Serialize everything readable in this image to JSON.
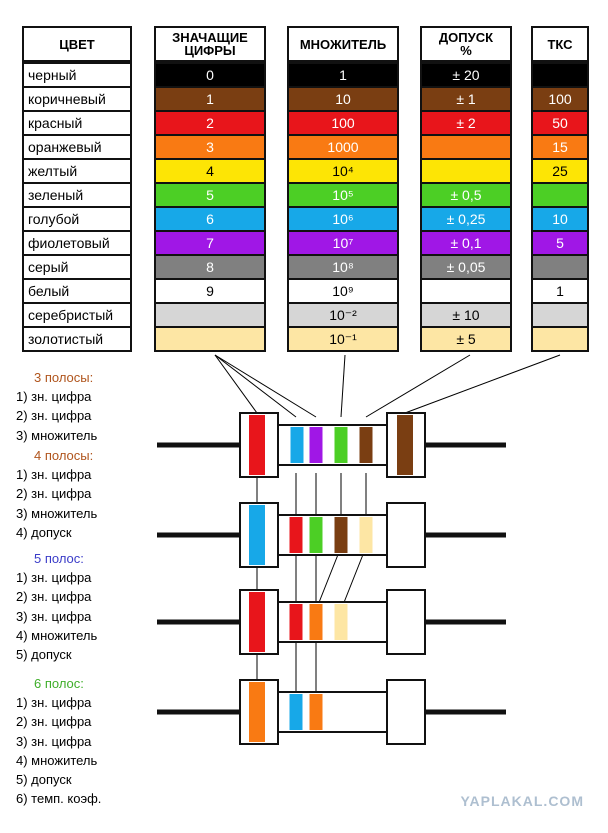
{
  "headers": {
    "color": "ЦВЕТ",
    "digits": "ЗНАЧАЩИЕ\nЦИФРЫ",
    "multiplier": "МНОЖИТЕЛЬ",
    "tolerance": "ДОПУСК\n%",
    "tkc": "ТКС"
  },
  "rows": [
    {
      "name": "черный",
      "hex": "#000000",
      "digit": "0",
      "mult": "1",
      "tol": "± 20",
      "tkc": ""
    },
    {
      "name": "коричневый",
      "hex": "#7a3e12",
      "digit": "1",
      "mult": "10",
      "tol": "± 1",
      "tkc": "100"
    },
    {
      "name": "красный",
      "hex": "#e8151b",
      "digit": "2",
      "mult": "100",
      "tol": "± 2",
      "tkc": "50"
    },
    {
      "name": "оранжевый",
      "hex": "#f97a13",
      "digit": "3",
      "mult": "1000",
      "tol": "",
      "tkc": "15"
    },
    {
      "name": "желтый",
      "hex": "#fde505",
      "digit": "4",
      "mult": "10⁴",
      "tol": "",
      "tkc": "25"
    },
    {
      "name": "зеленый",
      "hex": "#4ccf25",
      "digit": "5",
      "mult": "10⁵",
      "tol": "± 0,5",
      "tkc": ""
    },
    {
      "name": "голубой",
      "hex": "#17a8e8",
      "digit": "6",
      "mult": "10⁶",
      "tol": "± 0,25",
      "tkc": "10"
    },
    {
      "name": "фиолетовый",
      "hex": "#a017e6",
      "digit": "7",
      "mult": "10⁷",
      "tol": "± 0,1",
      "tkc": "5"
    },
    {
      "name": "серый",
      "hex": "#808080",
      "digit": "8",
      "mult": "10⁸",
      "tol": "± 0,05",
      "tkc": ""
    },
    {
      "name": "белый",
      "hex": "#ffffff",
      "digit": "9",
      "mult": "10⁹",
      "tol": "",
      "tkc": "1"
    },
    {
      "name": "серебристый",
      "hex": "#d6d6d6",
      "digit": "",
      "mult": "10⁻²",
      "tol": "± 10",
      "tkc": ""
    },
    {
      "name": "золотистый",
      "hex": "#fde6a4",
      "digit": "",
      "mult": "10⁻¹",
      "tol": "± 5",
      "tkc": ""
    }
  ],
  "legend": [
    {
      "title": "3 полосы:",
      "color": "#b0551d",
      "items": [
        "1) зн. цифра",
        "2) зн. цифра",
        "3) множитель"
      ]
    },
    {
      "title": "4 полосы:",
      "color": "#b0551d",
      "items": [
        "1) зн. цифра",
        "2) зн. цифра",
        "3) множитель",
        "4) допуск"
      ]
    },
    {
      "title": "5 полос:",
      "color": "#3a3cc8",
      "items": [
        "1) зн. цифра",
        "2) зн. цифра",
        "3) зн. цифра",
        "4) множитель",
        "5) допуск"
      ]
    },
    {
      "title": "6 полос:",
      "color": "#3fae2a",
      "items": [
        "1) зн. цифра",
        "2) зн. цифра",
        "3) зн. цифра",
        "4) множитель",
        "5) допуск",
        "6) темп. коэф."
      ]
    }
  ],
  "resistors": [
    {
      "bands": [
        "#e8151b",
        "#17a8e8",
        "#a017e6",
        "#4ccf25",
        "#7a3e12",
        "#7a3e12"
      ]
    },
    {
      "bands": [
        "#17a8e8",
        "#e8151b",
        "#4ccf25",
        "#7a3e12",
        "#fde6a4"
      ]
    },
    {
      "bands": [
        "#e8151b",
        "#e8151b",
        "#f97a13",
        "#fde6a4"
      ]
    },
    {
      "bands": [
        "#f97a13",
        "#17a8e8",
        "#f97a13"
      ]
    }
  ],
  "watermark": "YAPLAKAL.COM"
}
